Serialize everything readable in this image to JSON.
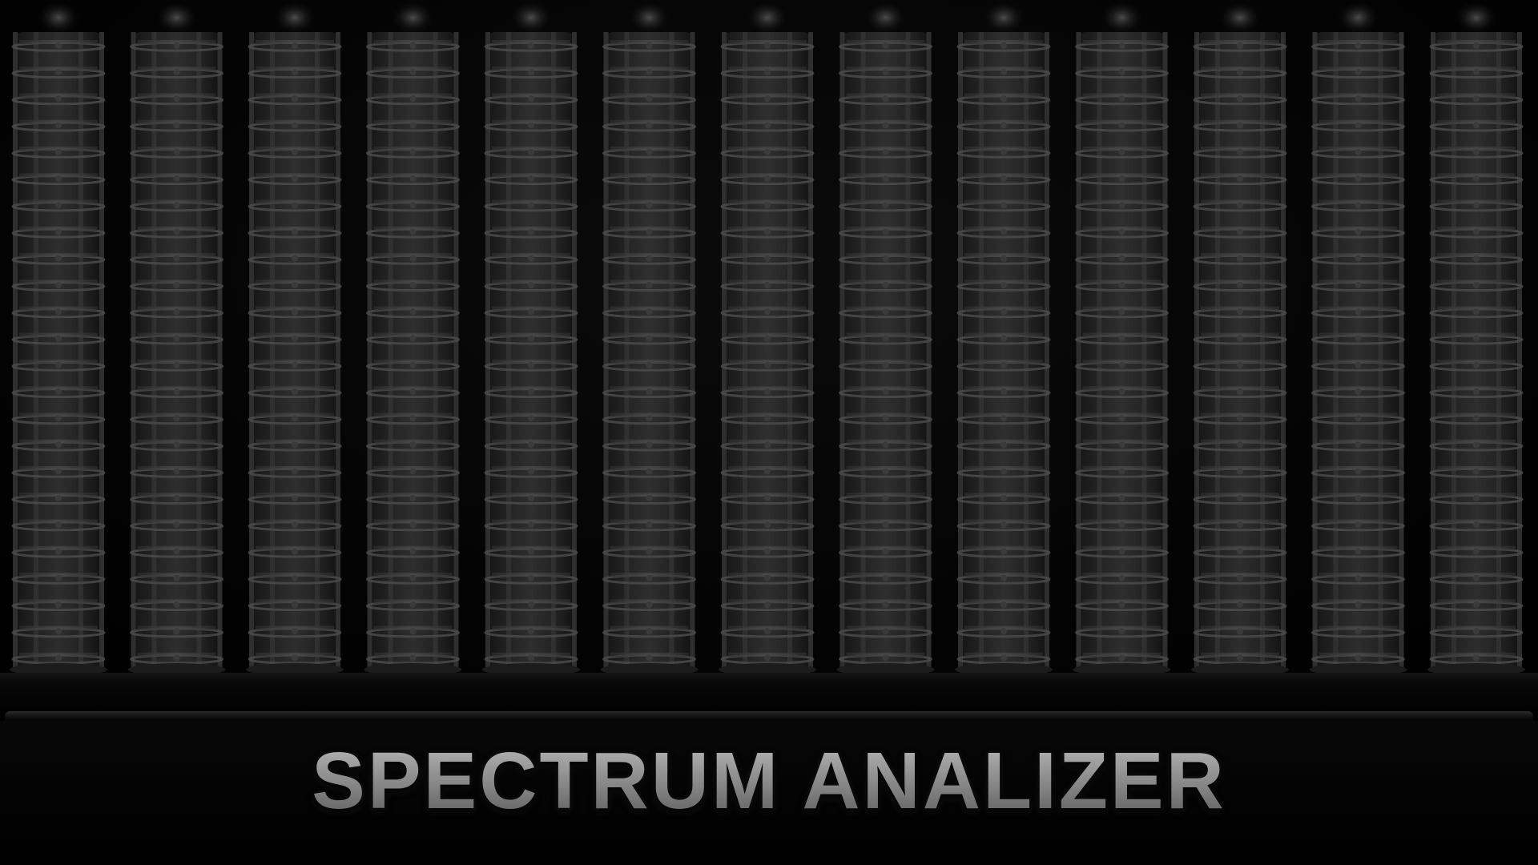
{
  "title": "SPECTRUM ANALIZER",
  "meter": {
    "column_count": 13,
    "segments_per_column": 24,
    "levels": [
      0,
      0,
      0,
      0,
      0,
      0,
      0,
      0,
      0,
      0,
      0,
      0,
      0
    ]
  },
  "colors": {
    "background": "#000000",
    "segment_off": "#3a3a3a",
    "segment_ring": "#4a4a4a",
    "title_text": "#9a9a9a"
  }
}
